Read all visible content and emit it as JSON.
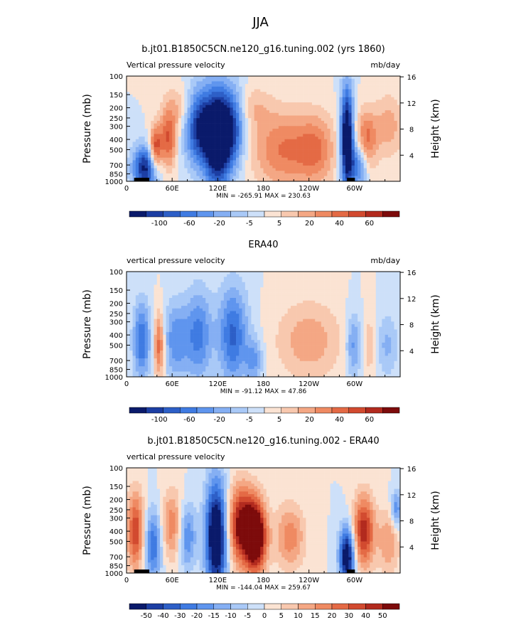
{
  "suptitle": "JJA",
  "chart_data": [
    {
      "type": "heatmap",
      "title": "b.jt01.B1850C5CN.ne120_g16.tuning.002 (yrs 1860)",
      "left_label": "Vertical pressure velocity",
      "right_label": "mb/day",
      "ylabel": "Pressure (mb)",
      "ylabel_right": "Height (km)",
      "x_ticks": [
        "0",
        "60E",
        "120E",
        "180",
        "120W",
        "60W"
      ],
      "x_tick_lon": [
        0,
        60,
        120,
        180,
        240,
        300
      ],
      "xlim": [
        0,
        360
      ],
      "y_ticks": [
        "100",
        "150",
        "200",
        "250",
        "300",
        "400",
        "500",
        "700",
        "850",
        "1000"
      ],
      "y_tick_p": [
        100,
        150,
        200,
        250,
        300,
        400,
        500,
        700,
        850,
        1000
      ],
      "ylim": [
        1000,
        100
      ],
      "y_scale": "log",
      "height_ticks": [
        "4",
        "8",
        "12",
        "16"
      ],
      "height_tick_km": [
        4,
        8,
        12,
        16
      ],
      "stats": "MIN = -265.91   MAX = 230.63",
      "levels": [
        "-100",
        "-60",
        "-20",
        "-5",
        "5",
        "20",
        "40",
        "60"
      ],
      "colorbar_levels": [
        -120,
        -100,
        -80,
        -60,
        -40,
        -20,
        -10,
        -5,
        0,
        5,
        10,
        20,
        30,
        40,
        60,
        80
      ],
      "value_scale": 60,
      "topography": [
        [
          10,
          30
        ],
        [
          290,
          300
        ]
      ],
      "features": [
        {
          "lon": 25,
          "p": 750,
          "value": -60,
          "wlon": 12,
          "wp": 0.35
        },
        {
          "lon": 38,
          "p": 500,
          "value": 50,
          "wlon": 6,
          "wp": 0.35
        },
        {
          "lon": 55,
          "p": 400,
          "value": 40,
          "wlon": 8,
          "wp": 0.45
        },
        {
          "lon": 95,
          "p": 300,
          "value": -55,
          "wlon": 14,
          "wp": 0.6
        },
        {
          "lon": 120,
          "p": 400,
          "value": -80,
          "wlon": 12,
          "wp": 0.75
        },
        {
          "lon": 140,
          "p": 300,
          "value": -45,
          "wlon": 12,
          "wp": 0.6
        },
        {
          "lon": 70,
          "p": 200,
          "value": 18,
          "wlon": 14,
          "wp": 0.35
        },
        {
          "lon": 165,
          "p": 200,
          "value": 14,
          "wlon": 18,
          "wp": 0.35
        },
        {
          "lon": 205,
          "p": 500,
          "value": 32,
          "wlon": 28,
          "wp": 0.6
        },
        {
          "lon": 250,
          "p": 500,
          "value": 28,
          "wlon": 18,
          "wp": 0.55
        },
        {
          "lon": 290,
          "p": 400,
          "value": -80,
          "wlon": 6,
          "wp": 0.8
        },
        {
          "lon": 305,
          "p": 700,
          "value": -40,
          "wlon": 8,
          "wp": 0.35
        },
        {
          "lon": 315,
          "p": 400,
          "value": 35,
          "wlon": 10,
          "wp": 0.45
        },
        {
          "lon": 345,
          "p": 300,
          "value": 20,
          "wlon": 14,
          "wp": 0.5
        }
      ]
    },
    {
      "type": "heatmap",
      "title": "ERA40",
      "left_label": "vertical pressure velocity",
      "right_label": "mb/day",
      "ylabel": "Pressure (mb)",
      "ylabel_right": "Height (km)",
      "x_ticks": [
        "0",
        "60E",
        "120E",
        "180",
        "120W",
        "60W"
      ],
      "x_tick_lon": [
        0,
        60,
        120,
        180,
        240,
        300
      ],
      "xlim": [
        0,
        360
      ],
      "y_ticks": [
        "100",
        "150",
        "200",
        "250",
        "300",
        "400",
        "500",
        "700",
        "850",
        "1000"
      ],
      "y_tick_p": [
        100,
        150,
        200,
        250,
        300,
        400,
        500,
        700,
        850,
        1000
      ],
      "ylim": [
        1000,
        100
      ],
      "y_scale": "log",
      "height_ticks": [
        "4",
        "8",
        "12",
        "16"
      ],
      "height_tick_km": [
        4,
        8,
        12,
        16
      ],
      "stats": "MIN = -91.12   MAX = 47.86",
      "levels": [
        "-100",
        "-60",
        "-20",
        "-5",
        "5",
        "20",
        "40",
        "60"
      ],
      "colorbar_levels": [
        -120,
        -100,
        -80,
        -60,
        -40,
        -20,
        -10,
        -5,
        0,
        5,
        10,
        20,
        30,
        40,
        60,
        80
      ],
      "value_scale": 60,
      "topography": [],
      "features": [
        {
          "lon": 20,
          "p": 450,
          "value": -40,
          "wlon": 8,
          "wp": 0.6
        },
        {
          "lon": 43,
          "p": 500,
          "value": 40,
          "wlon": 5,
          "wp": 0.5
        },
        {
          "lon": 65,
          "p": 450,
          "value": -30,
          "wlon": 12,
          "wp": 0.6
        },
        {
          "lon": 95,
          "p": 400,
          "value": -35,
          "wlon": 12,
          "wp": 0.7
        },
        {
          "lon": 140,
          "p": 400,
          "value": -42,
          "wlon": 14,
          "wp": 0.75
        },
        {
          "lon": 168,
          "p": 700,
          "value": -25,
          "wlon": 8,
          "wp": 0.35
        },
        {
          "lon": 240,
          "p": 450,
          "value": 22,
          "wlon": 30,
          "wp": 0.6
        },
        {
          "lon": 300,
          "p": 500,
          "value": -30,
          "wlon": 8,
          "wp": 0.5
        },
        {
          "lon": 320,
          "p": 500,
          "value": 18,
          "wlon": 10,
          "wp": 0.5
        },
        {
          "lon": 340,
          "p": 500,
          "value": -20,
          "wlon": 12,
          "wp": 0.5
        }
      ]
    },
    {
      "type": "heatmap",
      "title": "b.jt01.B1850C5CN.ne120_g16.tuning.002 - ERA40",
      "left_label": "vertical pressure velocity",
      "right_label": "",
      "ylabel": "Pressure (mb)",
      "ylabel_right": "Height (km)",
      "x_ticks": [
        "0",
        "60E",
        "120E",
        "180",
        "120W",
        "60W"
      ],
      "x_tick_lon": [
        0,
        60,
        120,
        180,
        240,
        300
      ],
      "xlim": [
        0,
        360
      ],
      "y_ticks": [
        "100",
        "150",
        "200",
        "250",
        "300",
        "400",
        "500",
        "700",
        "850",
        "1000"
      ],
      "y_tick_p": [
        100,
        150,
        200,
        250,
        300,
        400,
        500,
        700,
        850,
        1000
      ],
      "ylim": [
        1000,
        100
      ],
      "y_scale": "log",
      "height_ticks": [
        "4",
        "8",
        "12",
        "16"
      ],
      "height_tick_km": [
        4,
        8,
        12,
        16
      ],
      "stats": "MIN = -144.04   MAX = 259.67",
      "levels": [
        "-50",
        "-40",
        "-30",
        "-20",
        "-15",
        "-10",
        "-5",
        "0",
        "5",
        "10",
        "15",
        "20",
        "30",
        "40",
        "50"
      ],
      "colorbar_levels": [
        -60,
        -50,
        -40,
        -30,
        -20,
        -15,
        -10,
        -5,
        0,
        5,
        10,
        15,
        20,
        30,
        40,
        50
      ],
      "value_scale": 45,
      "topography": [
        [
          10,
          30
        ],
        [
          290,
          300
        ]
      ],
      "features": [
        {
          "lon": 12,
          "p": 400,
          "value": 35,
          "wlon": 8,
          "wp": 0.6
        },
        {
          "lon": 35,
          "p": 550,
          "value": -30,
          "wlon": 8,
          "wp": 0.55
        },
        {
          "lon": 60,
          "p": 350,
          "value": 22,
          "wlon": 10,
          "wp": 0.55
        },
        {
          "lon": 80,
          "p": 450,
          "value": -25,
          "wlon": 8,
          "wp": 0.5
        },
        {
          "lon": 118,
          "p": 450,
          "value": -60,
          "wlon": 10,
          "wp": 0.85
        },
        {
          "lon": 150,
          "p": 350,
          "value": 45,
          "wlon": 12,
          "wp": 0.6
        },
        {
          "lon": 170,
          "p": 450,
          "value": 60,
          "wlon": 10,
          "wp": 0.55
        },
        {
          "lon": 215,
          "p": 450,
          "value": 22,
          "wlon": 14,
          "wp": 0.5
        },
        {
          "lon": 290,
          "p": 700,
          "value": -55,
          "wlon": 7,
          "wp": 0.45
        },
        {
          "lon": 312,
          "p": 400,
          "value": 40,
          "wlon": 10,
          "wp": 0.55
        },
        {
          "lon": 345,
          "p": 500,
          "value": 18,
          "wlon": 10,
          "wp": 0.5
        },
        {
          "lon": 355,
          "p": 250,
          "value": -25,
          "wlon": 5,
          "wp": 0.3
        }
      ]
    }
  ]
}
